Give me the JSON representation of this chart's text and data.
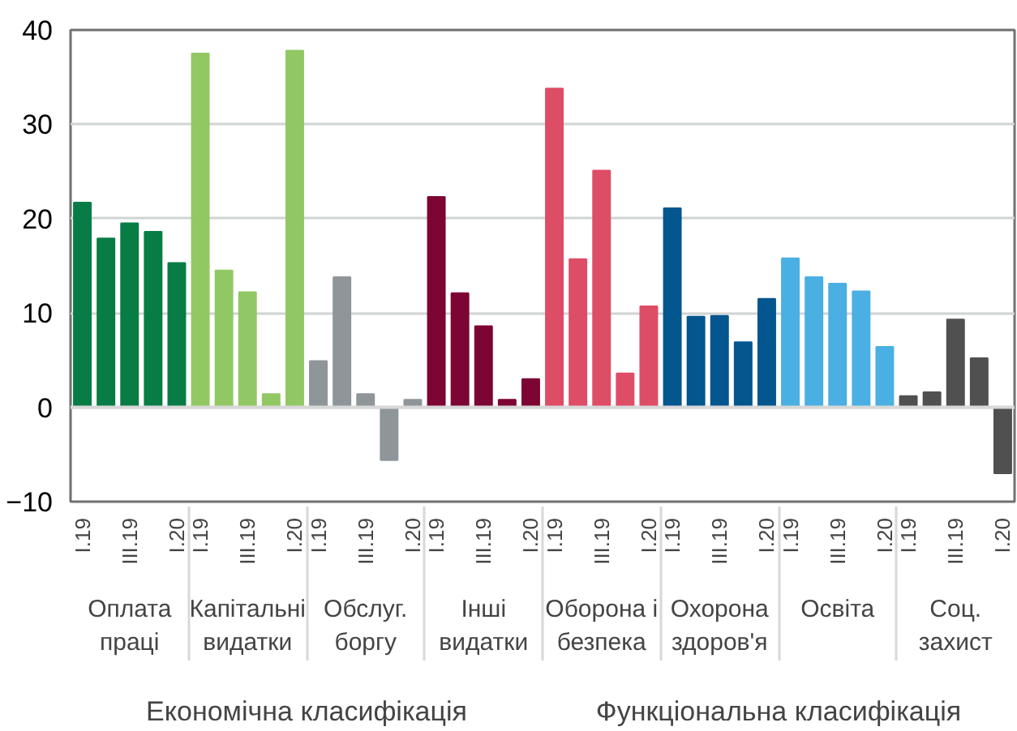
{
  "chart_data": {
    "type": "bar",
    "categories": [
      "I.19",
      null,
      "III.19",
      null,
      "I.20",
      "I.19",
      null,
      "III.19",
      null,
      "I.20",
      "I.19",
      null,
      "III.19",
      null,
      "I.20",
      "I.19",
      null,
      "III.19",
      null,
      "I.20",
      "I.19",
      null,
      "III.19",
      null,
      "I.20",
      "I.19",
      null,
      "III.19",
      null,
      "I.20",
      "I.19",
      null,
      "III.19",
      null,
      "I.20",
      "I.19",
      null,
      "III.19",
      null,
      "I.20"
    ],
    "values": [
      21.7,
      17.9,
      19.5,
      18.6,
      15.3,
      37.5,
      14.5,
      12.2,
      1.4,
      37.8,
      4.9,
      13.8,
      1.4,
      -5.6,
      0.8,
      22.3,
      12.1,
      8.6,
      0.8,
      3.0,
      33.8,
      15.7,
      25.1,
      3.6,
      10.7,
      21.1,
      9.6,
      9.7,
      6.9,
      11.5,
      15.8,
      13.8,
      13.1,
      12.3,
      6.4,
      1.2,
      1.6,
      9.3,
      5.2,
      -7.0
    ],
    "colors": [
      "#077d45",
      "#077d45",
      "#077d45",
      "#077d45",
      "#077d45",
      "#92c864",
      "#92c864",
      "#92c864",
      "#92c864",
      "#92c864",
      "#8f969a",
      "#8f969a",
      "#8f969a",
      "#8f969a",
      "#8f969a",
      "#7d0533",
      "#7d0533",
      "#7d0533",
      "#7d0533",
      "#7d0533",
      "#de4d66",
      "#de4d66",
      "#de4d66",
      "#de4d66",
      "#de4d66",
      "#03568e",
      "#03568e",
      "#03568e",
      "#03568e",
      "#03568e",
      "#4aafe2",
      "#4aafe2",
      "#4aafe2",
      "#4aafe2",
      "#4aafe2",
      "#505050",
      "#505050",
      "#505050",
      "#505050",
      "#505050"
    ],
    "ylim": [
      -10,
      40
    ],
    "yticks": [
      -10,
      0,
      10,
      20,
      30,
      40
    ],
    "grid": "y",
    "annotations": [
      "Оплата праці",
      "Капітальні видатки",
      "Обслуг. боргу",
      "Інші видатки",
      "Оборона і безпека",
      "Охорона здоров'я",
      "Освіта",
      "Соц. захист",
      "Економічна класифікація",
      "Функціональна класифікація"
    ]
  }
}
